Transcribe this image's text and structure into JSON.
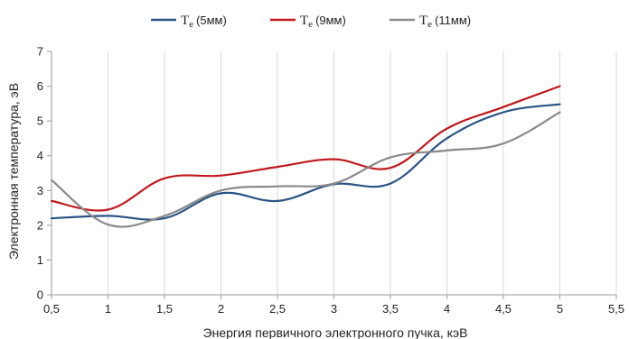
{
  "chart_data": {
    "type": "line",
    "xlabel": "Энергия первичного электронного пучка, кэВ",
    "ylabel": "Электронная температура, эВ",
    "xlim": [
      0.5,
      5.5
    ],
    "ylim": [
      0,
      7
    ],
    "x_ticks": [
      "0,5",
      "1",
      "1,5",
      "2",
      "2,5",
      "3",
      "3,5",
      "4",
      "4,5",
      "5",
      "5,5"
    ],
    "y_ticks": [
      "0",
      "1",
      "2",
      "3",
      "4",
      "5",
      "6",
      "7"
    ],
    "grid": "vertical",
    "legend_position": "top-center",
    "x": [
      0.5,
      1,
      1.5,
      2,
      2.5,
      3,
      3.5,
      4,
      4.5,
      5
    ],
    "series": [
      {
        "name": "(5мм)",
        "color": "#2a5485",
        "values": [
          2.2,
          2.27,
          2.2,
          2.92,
          2.7,
          3.18,
          3.2,
          4.5,
          5.25,
          5.48
        ]
      },
      {
        "name": "(9мм)",
        "color": "#c0191f",
        "values": [
          2.7,
          2.45,
          3.35,
          3.43,
          3.68,
          3.9,
          3.65,
          4.78,
          5.4,
          6.0
        ]
      },
      {
        "name": "(11мм)",
        "color": "#8a8a8a",
        "values": [
          3.3,
          2.02,
          2.27,
          3.0,
          3.12,
          3.2,
          3.95,
          4.15,
          4.35,
          5.25
        ]
      }
    ],
    "legend_symbol": "T",
    "legend_symbol_sub": "e"
  }
}
